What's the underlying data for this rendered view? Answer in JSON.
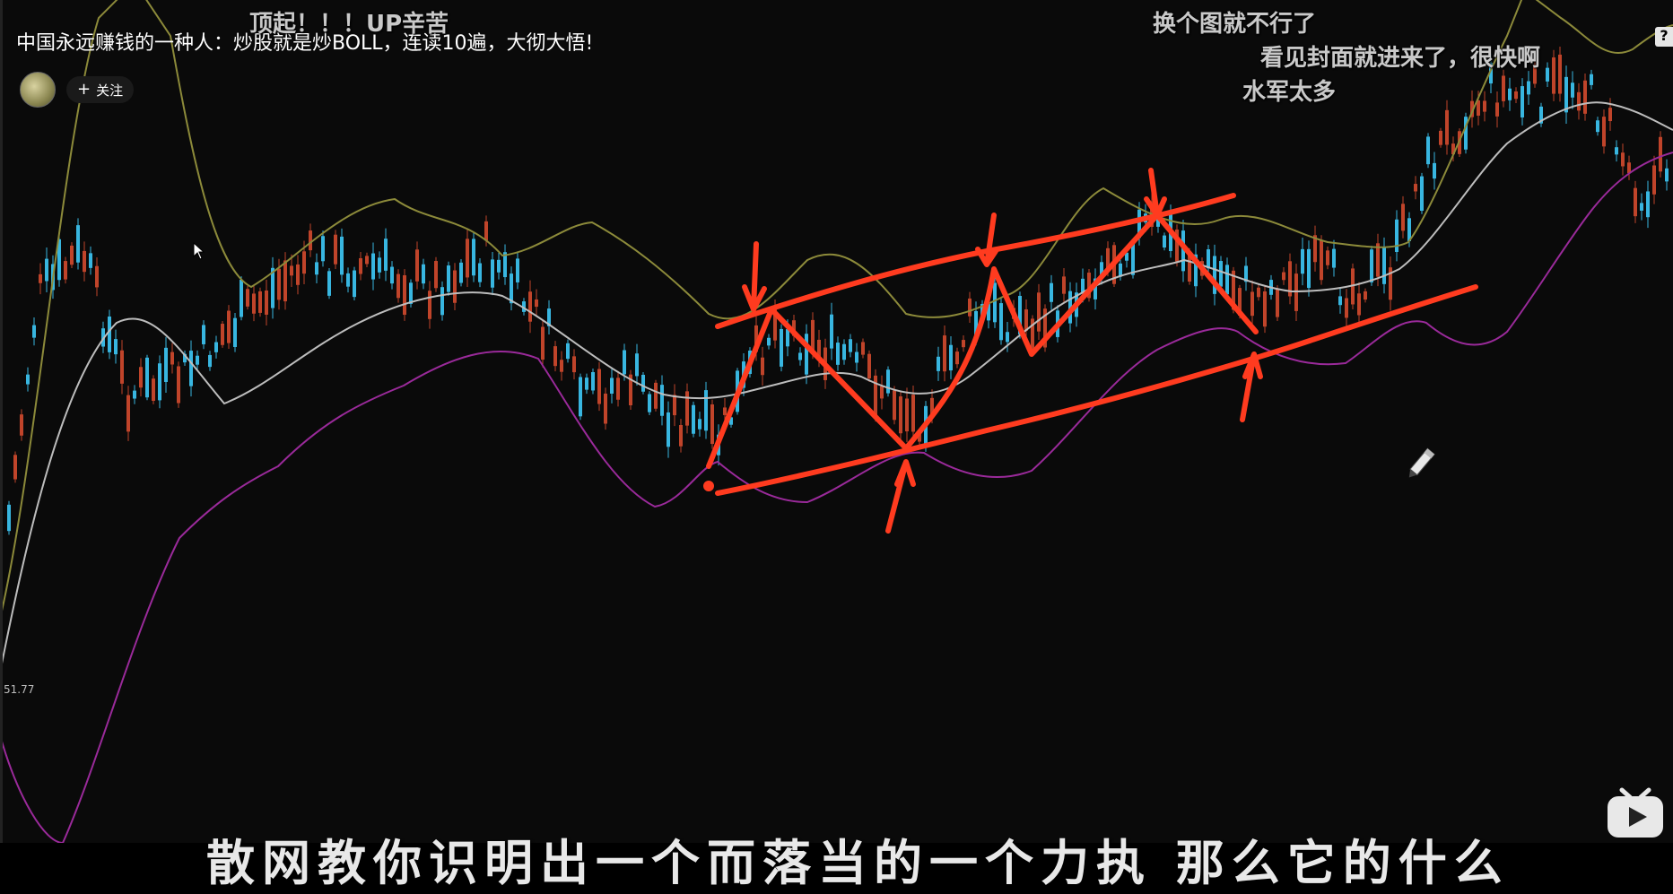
{
  "video": {
    "title": "中国永远赚钱的一种人：炒股就是炒BOLL，连读10遍，大彻大悟!",
    "follow_label": "关注",
    "follow_icon": "plus-icon"
  },
  "danmaku": [
    "顶起！！！UP辛苦",
    "换个图就不行了",
    "看见封面就进来了，很快啊",
    "水军太多"
  ],
  "subtitle": "散网教你识明出一个而落当的一个力执 那么它的什么",
  "axis": {
    "price_label": "51.77"
  },
  "help_label": "?",
  "icons": [
    "bilibili-logo-icon",
    "cursor-icon",
    "pen-icon"
  ],
  "colors": {
    "background": "#0a0a0a",
    "upper_band": "#8c8a3a",
    "middle_band": "#bdbdbd",
    "lower_band": "#9a2a9a",
    "candle_up": "#c0442a",
    "candle_down": "#38b6e0",
    "annotation": "#ff3b1f"
  }
}
